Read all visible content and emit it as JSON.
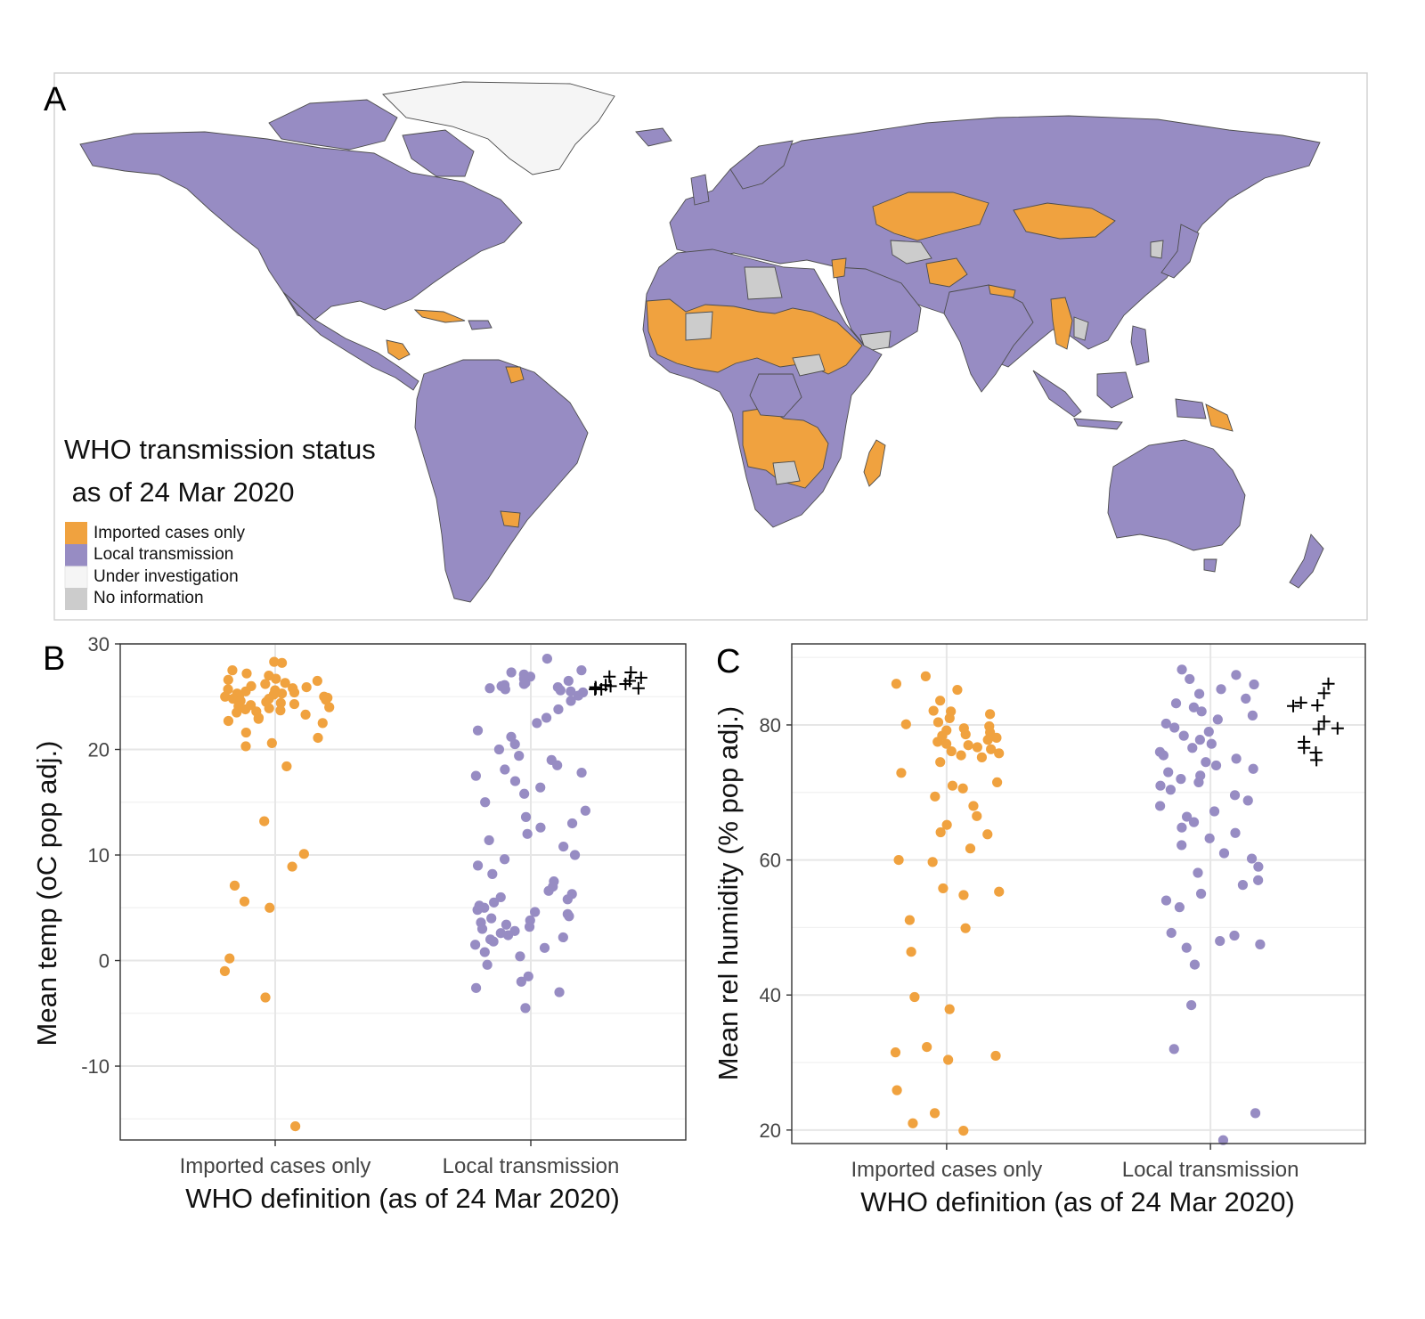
{
  "colors": {
    "imported": "#f0a23f",
    "local": "#978cc3",
    "investigation": "#f5f5f5",
    "no_information": "#cccccc",
    "plus_marker": "#000000"
  },
  "panel_a": {
    "letter": "A",
    "legend": {
      "title_line1": "WHO transmission status",
      "title_line2": " as of 24 Mar 2020",
      "items": [
        {
          "label": "Imported cases only",
          "color": "#f0a23f"
        },
        {
          "label": "Local transmission",
          "color": "#978cc3"
        },
        {
          "label": "Under investigation",
          "color": "#f5f5f5"
        },
        {
          "label": "No information",
          "color": "#cccccc"
        }
      ]
    }
  },
  "chart_data": [
    {
      "type": "scatter",
      "panel": "B",
      "categories": [
        "Imported cases only",
        "Local transmission"
      ],
      "xlabel": "WHO definition (as of 24 Mar 2020)",
      "ylabel": "Mean temp (oC pop adj.)",
      "ylim": [
        -17,
        30
      ],
      "yticks": [
        -10,
        0,
        10,
        20,
        30
      ],
      "yticklabels": [
        "-10",
        "0",
        "10",
        "20",
        "30"
      ],
      "grid": true,
      "series": [
        {
          "category": "Imported cases only",
          "color": "#f0a23f",
          "marker": "circle",
          "y": [
            28.3,
            28.2,
            27.5,
            27.2,
            27.0,
            26.7,
            26.6,
            26.5,
            26.3,
            26.2,
            26.0,
            25.9,
            25.8,
            25.7,
            25.6,
            25.5,
            25.4,
            25.3,
            25.3,
            25.2,
            25.1,
            25.0,
            25.0,
            24.9,
            24.8,
            24.8,
            24.7,
            24.6,
            24.5,
            24.4,
            24.3,
            24.2,
            24.1,
            24.0,
            23.9,
            23.8,
            23.7,
            23.6,
            23.5,
            23.3,
            23.0,
            22.9,
            22.7,
            22.5,
            21.6,
            21.1,
            20.6,
            20.3,
            18.4,
            13.2,
            10.1,
            8.9,
            7.1,
            5.6,
            5.0,
            0.2,
            -1.0,
            -3.5,
            -15.7
          ]
        },
        {
          "category": "Local transmission",
          "color": "#978cc3",
          "marker": "circle",
          "y": [
            28.6,
            27.5,
            27.3,
            27.1,
            26.9,
            26.7,
            26.5,
            26.3,
            26.2,
            26.1,
            26.0,
            25.9,
            25.8,
            25.7,
            25.6,
            25.5,
            25.4,
            25.1,
            24.6,
            23.8,
            23.0,
            22.5,
            21.8,
            21.2,
            20.5,
            20.0,
            19.4,
            19.0,
            18.5,
            18.1,
            17.8,
            17.5,
            17.0,
            16.4,
            15.8,
            15.0,
            14.2,
            13.6,
            13.0,
            12.6,
            12.0,
            11.4,
            10.8,
            10.0,
            9.6,
            9.0,
            8.2,
            7.5,
            7.0,
            6.6,
            6.3,
            6.0,
            5.8,
            5.5,
            5.2,
            5.0,
            4.8,
            4.6,
            4.4,
            4.2,
            4.0,
            3.8,
            3.6,
            3.4,
            3.2,
            3.0,
            2.8,
            2.6,
            2.4,
            2.2,
            2.0,
            1.8,
            1.5,
            1.2,
            0.8,
            0.4,
            -0.4,
            -1.5,
            -2.0,
            -2.6,
            -3.0,
            -4.5
          ]
        },
        {
          "category": "Local transmission",
          "color": "#000000",
          "marker": "plus",
          "y": [
            27.3,
            26.9,
            26.8,
            26.5,
            26.2,
            26.1,
            26.0,
            25.9,
            25.8,
            25.8,
            25.7,
            25.7
          ]
        }
      ]
    },
    {
      "type": "scatter",
      "panel": "C",
      "categories": [
        "Imported cases only",
        "Local transmission"
      ],
      "xlabel": "WHO definition (as of 24 Mar 2020)",
      "ylabel": "Mean rel humidity (% pop adj.)",
      "ylim": [
        18,
        92
      ],
      "yticks": [
        20,
        40,
        60,
        80
      ],
      "yticklabels": [
        "20",
        "40",
        "60",
        "80"
      ],
      "grid": true,
      "series": [
        {
          "category": "Imported cases only",
          "color": "#f0a23f",
          "marker": "circle",
          "y": [
            87.2,
            86.1,
            85.2,
            83.6,
            82.1,
            82.0,
            81.6,
            81.0,
            80.4,
            80.1,
            79.8,
            79.5,
            79.2,
            78.9,
            78.6,
            78.4,
            78.1,
            77.8,
            77.5,
            77.2,
            77.0,
            76.7,
            76.4,
            76.1,
            75.8,
            75.5,
            75.2,
            74.5,
            72.9,
            71.5,
            71.0,
            70.6,
            69.4,
            68.0,
            66.5,
            65.2,
            64.1,
            63.8,
            61.7,
            60.0,
            59.7,
            55.8,
            55.3,
            54.8,
            51.1,
            49.9,
            46.4,
            39.7,
            37.9,
            32.3,
            31.5,
            31.0,
            30.4,
            25.9,
            22.5,
            21.0,
            19.9
          ]
        },
        {
          "category": "Local transmission",
          "color": "#978cc3",
          "marker": "circle",
          "y": [
            88.2,
            87.4,
            86.8,
            86.0,
            85.3,
            84.6,
            83.9,
            83.2,
            82.6,
            82.0,
            81.4,
            80.8,
            80.2,
            79.6,
            79.0,
            78.4,
            77.8,
            77.2,
            76.6,
            76.0,
            75.5,
            75.0,
            74.5,
            74.0,
            73.5,
            73.0,
            72.5,
            72.0,
            71.5,
            71.0,
            70.4,
            69.6,
            68.8,
            68.0,
            67.2,
            66.4,
            65.6,
            64.8,
            64.0,
            63.2,
            62.2,
            61.0,
            60.2,
            59.0,
            58.1,
            57.0,
            56.3,
            55.0,
            54.0,
            53.0,
            49.2,
            48.8,
            48.0,
            47.5,
            47.0,
            44.5,
            38.5,
            32.0,
            22.5,
            18.5
          ]
        },
        {
          "category": "Local transmission",
          "color": "#000000",
          "marker": "plus",
          "y": [
            86.1,
            84.7,
            83.3,
            82.9,
            82.8,
            80.5,
            79.5,
            79.4,
            77.5,
            76.6,
            75.9,
            74.8
          ]
        }
      ]
    }
  ]
}
